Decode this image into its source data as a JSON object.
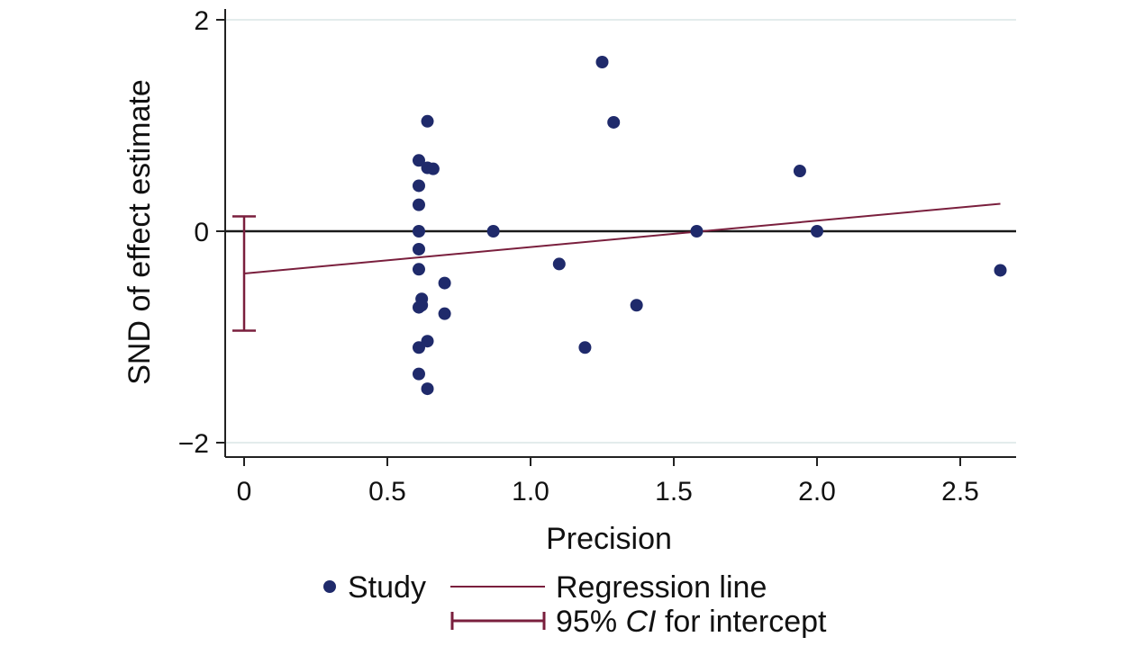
{
  "chart_data": {
    "type": "scatter",
    "xlabel": "Precision",
    "ylabel": "SND of effect estimate",
    "xlim": [
      0,
      2.7
    ],
    "ylim": [
      -2.1,
      2.1
    ],
    "x_ticks": [
      0,
      0.5,
      1.0,
      1.5,
      2.0,
      2.5
    ],
    "x_tick_labels": [
      "0",
      "0.5",
      "1.0",
      "1.5",
      "2.0",
      "2.5"
    ],
    "y_ticks": [
      -2,
      0,
      2
    ],
    "y_tick_labels": [
      "−2",
      "0",
      "2"
    ],
    "grid": "horizontal",
    "reference_line_y": 0,
    "colors": {
      "points": "#1f2a6b",
      "regression": "#7a1f3d",
      "axis": "#222222",
      "grid": "#e3ecec"
    },
    "series": [
      {
        "name": "Study",
        "points": [
          [
            0.61,
            0.67
          ],
          [
            0.61,
            0.43
          ],
          [
            0.61,
            0.25
          ],
          [
            0.61,
            0.0
          ],
          [
            0.61,
            -0.17
          ],
          [
            0.61,
            -0.36
          ],
          [
            0.62,
            -0.64
          ],
          [
            0.62,
            -0.7
          ],
          [
            0.61,
            -0.72
          ],
          [
            0.61,
            -1.1
          ],
          [
            0.61,
            -1.35
          ],
          [
            0.64,
            1.04
          ],
          [
            0.64,
            0.6
          ],
          [
            0.66,
            0.59
          ],
          [
            0.64,
            -1.04
          ],
          [
            0.64,
            -1.49
          ],
          [
            0.7,
            -0.49
          ],
          [
            0.7,
            -0.78
          ],
          [
            0.87,
            0.0
          ],
          [
            1.1,
            -0.31
          ],
          [
            1.19,
            -1.1
          ],
          [
            1.25,
            1.6
          ],
          [
            1.29,
            1.03
          ],
          [
            1.37,
            -0.7
          ],
          [
            1.58,
            0.0
          ],
          [
            1.94,
            0.57
          ],
          [
            2.0,
            0.0
          ],
          [
            2.64,
            -0.37
          ]
        ]
      },
      {
        "name": "Regression line",
        "intercept": -0.4,
        "slope": 0.25,
        "x_range": [
          0,
          2.64
        ]
      },
      {
        "name": "95% CI for intercept",
        "x": 0,
        "lower": -0.94,
        "upper": 0.14
      }
    ],
    "legend": {
      "position": "bottom",
      "study_label": "Study",
      "regression_label": "Regression line",
      "ci_label_prefix": "95% ",
      "ci_label_italic": "CI",
      "ci_label_suffix": " for intercept"
    }
  }
}
